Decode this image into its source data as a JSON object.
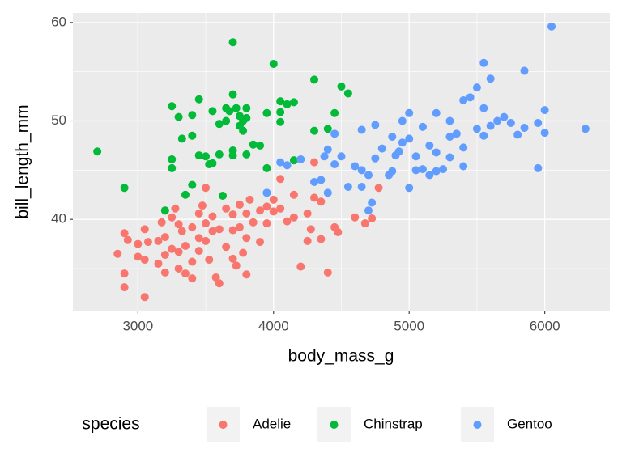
{
  "chart_data": {
    "type": "scatter",
    "x_label": "body_mass_g",
    "y_label": "bill_length_mm",
    "legend_title": "species",
    "legend_position": "bottom",
    "grid": true,
    "background": "#EBEBEB",
    "xlim": [
      2520,
      6480
    ],
    "ylim": [
      30.725,
      60.975
    ],
    "xticks": [
      3000,
      4000,
      5000,
      6000
    ],
    "yticks": [
      40,
      50,
      60
    ],
    "series": [
      {
        "name": "Adelie",
        "color": "#F8766D",
        "x": [
          2850,
          2900,
          2900,
          2900,
          2925,
          3000,
          3000,
          3050,
          3050,
          3050,
          3075,
          3150,
          3150,
          3175,
          3200,
          3200,
          3200,
          3200,
          3250,
          3250,
          3275,
          3300,
          3300,
          3300,
          3325,
          3350,
          3350,
          3400,
          3400,
          3400,
          3450,
          3450,
          3450,
          3475,
          3500,
          3500,
          3500,
          3525,
          3550,
          3550,
          3575,
          3600,
          3600,
          3650,
          3650,
          3700,
          3700,
          3700,
          3725,
          3750,
          3750,
          3775,
          3800,
          3800,
          3800,
          3825,
          3850,
          3900,
          3900,
          3950,
          3950,
          4000,
          4000,
          4050,
          4050,
          4100,
          4150,
          4200,
          4250,
          4275,
          4300,
          4300,
          4350,
          4400,
          4450,
          4475,
          4600,
          4675,
          4725,
          4775,
          4150,
          4250,
          4350
        ],
        "values": [
          36.5,
          38.6,
          34.5,
          33.1,
          37.9,
          37.5,
          36.2,
          32.1,
          35.9,
          39.0,
          37.7,
          37.8,
          35.5,
          39.7,
          40.9,
          38.2,
          36.4,
          34.6,
          40.2,
          37.0,
          41.1,
          39.5,
          36.7,
          35.0,
          38.8,
          34.5,
          37.3,
          39.2,
          35.7,
          34.0,
          38.1,
          40.6,
          36.8,
          41.4,
          37.8,
          39.6,
          43.2,
          35.9,
          38.8,
          40.3,
          34.1,
          33.5,
          39.0,
          41.1,
          37.2,
          36.0,
          38.9,
          40.5,
          35.3,
          39.2,
          41.5,
          36.6,
          40.6,
          38.1,
          34.4,
          42.0,
          39.7,
          40.9,
          37.7,
          41.3,
          39.6,
          42.0,
          40.8,
          44.1,
          41.1,
          39.8,
          42.5,
          35.2,
          40.6,
          39.0,
          45.8,
          42.2,
          41.8,
          34.6,
          39.2,
          38.7,
          40.2,
          39.6,
          40.1,
          43.2,
          40.2,
          37.8,
          38.0
        ]
      },
      {
        "name": "Chinstrap",
        "color": "#00BA38",
        "x": [
          2700,
          2900,
          3250,
          3300,
          3250,
          3250,
          3200,
          3325,
          3400,
          3400,
          3400,
          3350,
          3450,
          3450,
          3500,
          3525,
          3550,
          3550,
          3600,
          3600,
          3625,
          3650,
          3650,
          3675,
          3700,
          3700,
          3700,
          3700,
          3725,
          3750,
          3750,
          3775,
          3775,
          3800,
          3800,
          3800,
          3850,
          3900,
          3950,
          3950,
          4000,
          4050,
          4050,
          4050,
          4100,
          4150,
          4150,
          4300,
          4300,
          4400,
          4450,
          4500,
          4550
        ],
        "values": [
          46.9,
          43.2,
          51.5,
          50.4,
          46.1,
          45.2,
          40.9,
          48.2,
          50.6,
          48.5,
          43.5,
          42.5,
          52.2,
          46.5,
          46.4,
          45.6,
          45.7,
          51.0,
          49.7,
          46.6,
          42.4,
          51.3,
          50.0,
          51.0,
          58.0,
          52.7,
          47.0,
          46.5,
          51.3,
          50.5,
          49.5,
          50.0,
          49.0,
          46.6,
          51.3,
          50.3,
          47.6,
          47.5,
          50.8,
          45.2,
          55.8,
          52.0,
          50.9,
          49.9,
          51.7,
          51.9,
          46.0,
          54.2,
          49.0,
          49.2,
          50.8,
          53.5,
          52.8
        ]
      },
      {
        "name": "Gentoo",
        "color": "#619CFF",
        "x": [
          3950,
          4050,
          4100,
          4200,
          4300,
          4350,
          4375,
          4400,
          4450,
          4400,
          4450,
          4500,
          4550,
          4600,
          4650,
          4650,
          4650,
          4700,
          4700,
          4725,
          4750,
          4750,
          4800,
          4850,
          4875,
          4900,
          4950,
          4950,
          5000,
          5000,
          5000,
          5050,
          5100,
          5100,
          5150,
          5200,
          5200,
          5250,
          5300,
          5300,
          5300,
          5350,
          5400,
          5400,
          5450,
          5500,
          5500,
          5550,
          5550,
          5550,
          5600,
          5600,
          5650,
          5700,
          5750,
          5800,
          5850,
          5850,
          5950,
          5950,
          6000,
          6000,
          6050,
          6300,
          5400,
          5200,
          5150,
          4875,
          4925,
          5050
        ],
        "values": [
          42.7,
          45.8,
          45.5,
          46.1,
          43.8,
          44.0,
          46.4,
          47.1,
          48.7,
          42.7,
          45.6,
          46.4,
          43.3,
          45.4,
          49.1,
          43.3,
          45.0,
          40.9,
          44.5,
          41.7,
          49.6,
          46.2,
          47.2,
          44.5,
          48.4,
          46.5,
          50.0,
          47.8,
          43.2,
          48.2,
          50.8,
          46.4,
          45.1,
          49.4,
          47.5,
          46.8,
          50.8,
          45.1,
          46.3,
          50.0,
          48.4,
          48.7,
          52.1,
          47.3,
          52.4,
          53.4,
          49.2,
          48.5,
          51.3,
          55.9,
          54.3,
          49.5,
          50.0,
          50.4,
          49.8,
          48.6,
          55.1,
          49.3,
          45.2,
          49.8,
          51.1,
          48.8,
          59.6,
          49.2,
          45.4,
          44.9,
          44.5,
          44.9,
          46.9,
          45.0
        ]
      }
    ]
  }
}
